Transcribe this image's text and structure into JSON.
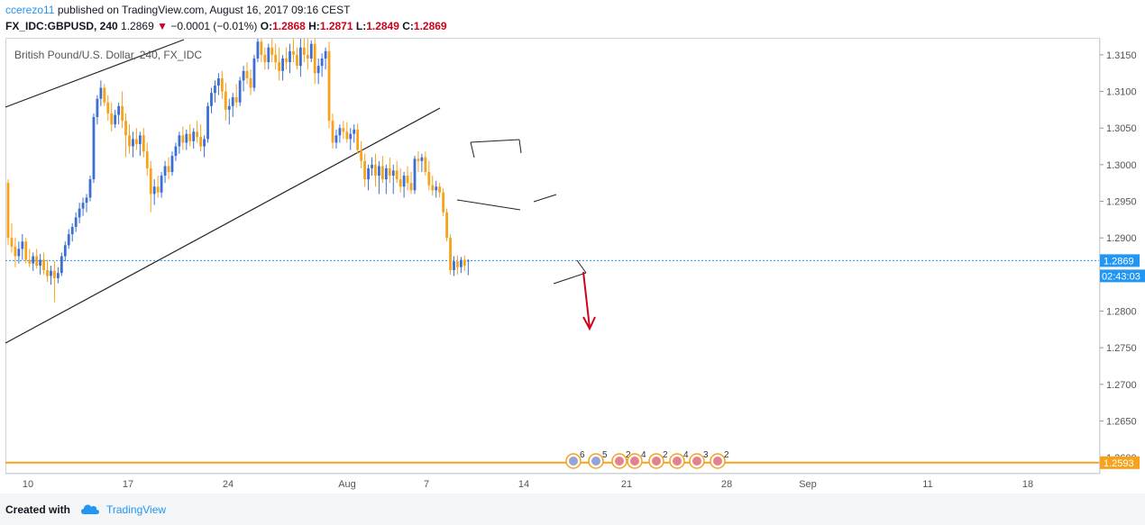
{
  "header": {
    "user": "ccerezo11",
    "published": " published on TradingView.com, August 16, 2017 09:16 CEST",
    "symbol_line": "FX_IDC:GBPUSD, 240",
    "last": "1.2869",
    "change": "−0.0001 (−0.01%)",
    "o_label": "O:",
    "o_val": "1.2868",
    "h_label": "H:",
    "h_val": "1.2871",
    "l_label": "L:",
    "l_val": "1.2849",
    "c_label": "C:",
    "c_val": "1.2869"
  },
  "legend_title": "British Pound/U.S. Dollar, 240, FX_IDC",
  "footer": {
    "created": "Created with",
    "brand": "TradingView"
  },
  "colors": {
    "up": "#3b6fd4",
    "down": "#f7a21b",
    "accent": "#2196f3",
    "support": "#f7a21b",
    "arrow": "#d0021b"
  },
  "chart_data": {
    "type": "candlestick",
    "title": "British Pound/U.S. Dollar, 240, FX_IDC",
    "x_ticks": [
      "10",
      "17",
      "24",
      "Aug",
      "7",
      "14",
      "21",
      "28",
      "Sep",
      "11",
      "18"
    ],
    "y_ticks": [
      "1.3150",
      "1.3100",
      "1.3050",
      "1.3000",
      "1.2950",
      "1.2900",
      "1.2850",
      "1.2800",
      "1.2750",
      "1.2700",
      "1.2650",
      "1.2600"
    ],
    "ylim": [
      1.2578,
      1.3172
    ],
    "last_price_label": "1.2869",
    "countdown_label": "02:43:03",
    "support_label": "1.2593",
    "support_level": 1.2593,
    "last_price": 1.2869,
    "events": [
      {
        "badge": "6"
      },
      {
        "badge": "5"
      },
      {
        "badge": "2"
      },
      {
        "badge": "4"
      },
      {
        "badge": "2"
      },
      {
        "badge": "4"
      },
      {
        "badge": "3"
      },
      {
        "badge": "2"
      }
    ],
    "candles": [
      [
        1.2975,
        1.298,
        1.289,
        1.29
      ],
      [
        1.29,
        1.292,
        1.288,
        1.2888
      ],
      [
        1.2888,
        1.29,
        1.286,
        1.2875
      ],
      [
        1.2875,
        1.2895,
        1.2865,
        1.2885
      ],
      [
        1.2885,
        1.2905,
        1.287,
        1.2895
      ],
      [
        1.2895,
        1.29,
        1.2865,
        1.287
      ],
      [
        1.287,
        1.2885,
        1.286,
        1.2865
      ],
      [
        1.2865,
        1.288,
        1.2855,
        1.2875
      ],
      [
        1.2875,
        1.2885,
        1.2858,
        1.2862
      ],
      [
        1.2862,
        1.2878,
        1.285,
        1.287
      ],
      [
        1.287,
        1.288,
        1.285,
        1.2856
      ],
      [
        1.2856,
        1.287,
        1.284,
        1.2848
      ],
      [
        1.2848,
        1.2862,
        1.2836,
        1.2855
      ],
      [
        1.2855,
        1.2868,
        1.2812,
        1.2845
      ],
      [
        1.2845,
        1.286,
        1.2838,
        1.2852
      ],
      [
        1.2852,
        1.288,
        1.2848,
        1.2875
      ],
      [
        1.2875,
        1.2895,
        1.2868,
        1.289
      ],
      [
        1.289,
        1.2912,
        1.2885,
        1.2905
      ],
      [
        1.2905,
        1.292,
        1.2895,
        1.2915
      ],
      [
        1.2915,
        1.2935,
        1.2908,
        1.2928
      ],
      [
        1.2928,
        1.2948,
        1.292,
        1.294
      ],
      [
        1.294,
        1.2955,
        1.293,
        1.2948
      ],
      [
        1.2948,
        1.296,
        1.2935,
        1.2955
      ],
      [
        1.2955,
        1.2985,
        1.295,
        1.298
      ],
      [
        1.298,
        1.307,
        1.2975,
        1.3065
      ],
      [
        1.3065,
        1.3095,
        1.3055,
        1.309
      ],
      [
        1.309,
        1.3115,
        1.308,
        1.3105
      ],
      [
        1.3105,
        1.311,
        1.308,
        1.3085
      ],
      [
        1.3085,
        1.3095,
        1.306,
        1.307
      ],
      [
        1.307,
        1.3085,
        1.3045,
        1.3055
      ],
      [
        1.3055,
        1.3075,
        1.305,
        1.3068
      ],
      [
        1.3068,
        1.3085,
        1.3055,
        1.308
      ],
      [
        1.308,
        1.31,
        1.305,
        1.306
      ],
      [
        1.306,
        1.307,
        1.301,
        1.304
      ],
      [
        1.304,
        1.3055,
        1.3015,
        1.3025
      ],
      [
        1.3025,
        1.3045,
        1.301,
        1.3035
      ],
      [
        1.3035,
        1.305,
        1.302,
        1.3028
      ],
      [
        1.3028,
        1.3045,
        1.3012,
        1.304
      ],
      [
        1.304,
        1.305,
        1.301,
        1.3018
      ],
      [
        1.3018,
        1.303,
        1.2985,
        1.2995
      ],
      [
        1.2995,
        1.3005,
        1.2935,
        1.296
      ],
      [
        1.296,
        1.298,
        1.2945,
        1.297
      ],
      [
        1.297,
        1.2985,
        1.2955,
        1.2962
      ],
      [
        1.2962,
        1.299,
        1.2955,
        1.2985
      ],
      [
        1.2985,
        1.3005,
        1.2975,
        1.2998
      ],
      [
        1.2998,
        1.301,
        1.298,
        1.299
      ],
      [
        1.299,
        1.3018,
        1.2985,
        1.3012
      ],
      [
        1.3012,
        1.303,
        1.3005,
        1.3025
      ],
      [
        1.3025,
        1.3045,
        1.3015,
        1.304
      ],
      [
        1.304,
        1.3052,
        1.302,
        1.303
      ],
      [
        1.303,
        1.3048,
        1.302,
        1.3042
      ],
      [
        1.3042,
        1.3055,
        1.3025,
        1.3032
      ],
      [
        1.3032,
        1.305,
        1.3022,
        1.3045
      ],
      [
        1.3045,
        1.306,
        1.303,
        1.3038
      ],
      [
        1.3038,
        1.3055,
        1.3018,
        1.3025
      ],
      [
        1.3025,
        1.304,
        1.301,
        1.3035
      ],
      [
        1.3035,
        1.3085,
        1.303,
        1.308
      ],
      [
        1.308,
        1.3105,
        1.307,
        1.3098
      ],
      [
        1.3098,
        1.3115,
        1.3085,
        1.3108
      ],
      [
        1.3108,
        1.3125,
        1.3095,
        1.3118
      ],
      [
        1.3118,
        1.3128,
        1.309,
        1.31
      ],
      [
        1.31,
        1.3112,
        1.306,
        1.3075
      ],
      [
        1.3075,
        1.309,
        1.3055,
        1.308
      ],
      [
        1.308,
        1.3098,
        1.3065,
        1.3092
      ],
      [
        1.3092,
        1.311,
        1.3078,
        1.3085
      ],
      [
        1.3085,
        1.312,
        1.308,
        1.3115
      ],
      [
        1.3115,
        1.3135,
        1.31,
        1.3128
      ],
      [
        1.3128,
        1.314,
        1.311,
        1.3118
      ],
      [
        1.3118,
        1.313,
        1.3095,
        1.3105
      ],
      [
        1.3105,
        1.315,
        1.31,
        1.3145
      ],
      [
        1.3145,
        1.3172,
        1.314,
        1.3168
      ],
      [
        1.3168,
        1.3172,
        1.314,
        1.315
      ],
      [
        1.315,
        1.316,
        1.313,
        1.314
      ],
      [
        1.314,
        1.3165,
        1.313,
        1.316
      ],
      [
        1.316,
        1.3172,
        1.314,
        1.315
      ],
      [
        1.315,
        1.3165,
        1.313,
        1.314
      ],
      [
        1.314,
        1.316,
        1.3115,
        1.3128
      ],
      [
        1.3128,
        1.315,
        1.3115,
        1.3145
      ],
      [
        1.3145,
        1.316,
        1.313,
        1.314
      ],
      [
        1.314,
        1.3165,
        1.3125,
        1.3155
      ],
      [
        1.3155,
        1.3172,
        1.314,
        1.315
      ],
      [
        1.315,
        1.316,
        1.313,
        1.3135
      ],
      [
        1.3135,
        1.3172,
        1.312,
        1.316
      ],
      [
        1.316,
        1.3172,
        1.314,
        1.315
      ],
      [
        1.315,
        1.3172,
        1.313,
        1.3145
      ],
      [
        1.3145,
        1.317,
        1.314,
        1.3165
      ],
      [
        1.3165,
        1.3172,
        1.311,
        1.3125
      ],
      [
        1.3125,
        1.3145,
        1.311,
        1.3135
      ],
      [
        1.3135,
        1.3152,
        1.312,
        1.3145
      ],
      [
        1.3145,
        1.316,
        1.313,
        1.3155
      ],
      [
        1.3155,
        1.3168,
        1.305,
        1.306
      ],
      [
        1.306,
        1.307,
        1.3022,
        1.303
      ],
      [
        1.303,
        1.3048,
        1.3022,
        1.304
      ],
      [
        1.304,
        1.3055,
        1.303,
        1.305
      ],
      [
        1.305,
        1.306,
        1.3035,
        1.3045
      ],
      [
        1.3045,
        1.3058,
        1.303,
        1.3035
      ],
      [
        1.3035,
        1.305,
        1.302,
        1.3042
      ],
      [
        1.3042,
        1.3055,
        1.303,
        1.3048
      ],
      [
        1.3048,
        1.3056,
        1.3015,
        1.302
      ],
      [
        1.302,
        1.3032,
        1.2995,
        1.3005
      ],
      [
        1.3005,
        1.3015,
        1.297,
        1.298
      ],
      [
        1.298,
        1.3,
        1.2965,
        1.2995
      ],
      [
        1.2995,
        1.301,
        1.2985,
        1.3
      ],
      [
        1.3,
        1.3015,
        1.297,
        1.2985
      ],
      [
        1.2985,
        1.3005,
        1.296,
        1.2998
      ],
      [
        1.2998,
        1.3012,
        1.2975,
        1.298
      ],
      [
        1.298,
        1.3,
        1.296,
        1.2995
      ],
      [
        1.2995,
        1.301,
        1.2975,
        1.2985
      ],
      [
        1.2985,
        1.3,
        1.296,
        1.2992
      ],
      [
        1.2992,
        1.3005,
        1.2975,
        1.298
      ],
      [
        1.298,
        1.2995,
        1.2962,
        1.297
      ],
      [
        1.297,
        1.299,
        1.2955,
        1.2985
      ],
      [
        1.2985,
        1.2998,
        1.2965,
        1.2975
      ],
      [
        1.2975,
        1.299,
        1.296,
        1.2965
      ],
      [
        1.2965,
        1.3012,
        1.296,
        1.3008
      ],
      [
        1.3008,
        1.3018,
        1.299,
        1.3005
      ],
      [
        1.3005,
        1.3015,
        1.299,
        1.301
      ],
      [
        1.301,
        1.3018,
        1.2985,
        1.299
      ],
      [
        1.299,
        1.3005,
        1.2965,
        1.2972
      ],
      [
        1.2972,
        1.2985,
        1.2958,
        1.2965
      ],
      [
        1.2965,
        1.2978,
        1.2955,
        1.297
      ],
      [
        1.297,
        1.2975,
        1.2955,
        1.2962
      ],
      [
        1.2962,
        1.2968,
        1.293,
        1.2935
      ],
      [
        1.2935,
        1.294,
        1.2895,
        1.29
      ],
      [
        1.29,
        1.2905,
        1.285,
        1.2856
      ],
      [
        1.2856,
        1.2875,
        1.2848,
        1.2868
      ],
      [
        1.2868,
        1.2876,
        1.285,
        1.286
      ],
      [
        1.286,
        1.2874,
        1.2852,
        1.287
      ],
      [
        1.287,
        1.2876,
        1.2855,
        1.2862
      ],
      [
        1.2868,
        1.2871,
        1.2849,
        1.2869
      ]
    ]
  }
}
